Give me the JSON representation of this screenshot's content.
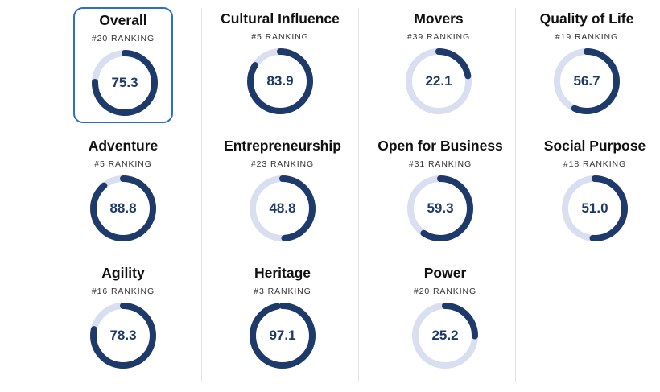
{
  "colors": {
    "ring_track": "#d9def0",
    "ring_fill": "#1d3a6a",
    "selected_border": "#2a6fc9"
  },
  "metrics": [
    {
      "title": "Overall",
      "rank": "#20 RANKING",
      "score": "75.3",
      "fraction": 0.753,
      "selected": true
    },
    {
      "title": "Cultural Influence",
      "rank": "#5 RANKING",
      "score": "83.9",
      "fraction": 0.839
    },
    {
      "title": "Movers",
      "rank": "#39 RANKING",
      "score": "22.1",
      "fraction": 0.221
    },
    {
      "title": "Quality of Life",
      "rank": "#19 RANKING",
      "score": "56.7",
      "fraction": 0.567
    },
    {
      "title": "Adventure",
      "rank": "#5 RANKING",
      "score": "88.8",
      "fraction": 0.888
    },
    {
      "title": "Entrepreneurship",
      "rank": "#23 RANKING",
      "score": "48.8",
      "fraction": 0.488
    },
    {
      "title": "Open for Business",
      "rank": "#31 RANKING",
      "score": "59.3",
      "fraction": 0.593
    },
    {
      "title": "Social Purpose",
      "rank": "#18 RANKING",
      "score": "51.0",
      "fraction": 0.51
    },
    {
      "title": "Agility",
      "rank": "#16 RANKING",
      "score": "78.3",
      "fraction": 0.783
    },
    {
      "title": "Heritage",
      "rank": "#3 RANKING",
      "score": "97.1",
      "fraction": 0.971
    },
    {
      "title": "Power",
      "rank": "#20 RANKING",
      "score": "25.2",
      "fraction": 0.252
    }
  ]
}
